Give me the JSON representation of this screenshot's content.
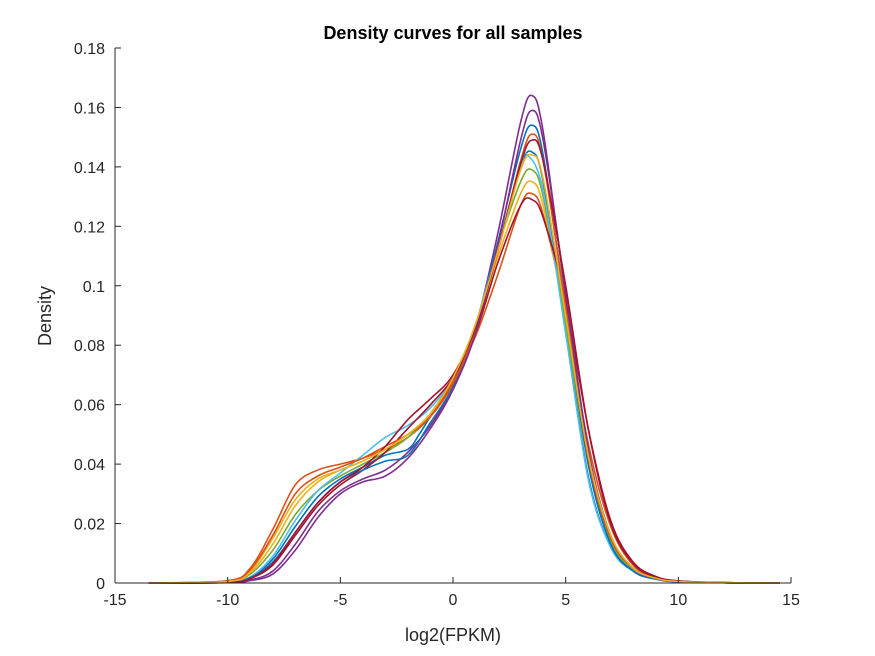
{
  "chart_data": {
    "type": "line",
    "title": "Density curves for all samples",
    "xlabel": "log2(FPKM)",
    "ylabel": "Density",
    "xlim": [
      -15,
      15
    ],
    "ylim": [
      0,
      0.18
    ],
    "xticks": [
      "-15",
      "-10",
      "-5",
      "0",
      "5",
      "10",
      "15"
    ],
    "yticks": [
      "0",
      "0.02",
      "0.04",
      "0.06",
      "0.08",
      "0.1",
      "0.12",
      "0.14",
      "0.16",
      "0.18"
    ],
    "grid": false,
    "legend": "none",
    "series": [
      {
        "color": "#0072BD",
        "values": [
          [
            -13.5,
            0
          ],
          [
            -10,
            0.0003
          ],
          [
            -9,
            0.002
          ],
          [
            -8,
            0.008
          ],
          [
            -7,
            0.019
          ],
          [
            -6,
            0.029
          ],
          [
            -5,
            0.035
          ],
          [
            -4,
            0.039
          ],
          [
            -3,
            0.043
          ],
          [
            -2,
            0.045
          ],
          [
            -1.5,
            0.05
          ],
          [
            -1,
            0.056
          ],
          [
            0,
            0.067
          ],
          [
            1,
            0.085
          ],
          [
            2,
            0.112
          ],
          [
            3,
            0.14
          ],
          [
            3.5,
            0.145
          ],
          [
            4,
            0.135
          ],
          [
            5,
            0.085
          ],
          [
            6,
            0.036
          ],
          [
            7,
            0.012
          ],
          [
            8,
            0.004
          ],
          [
            9,
            0.0015
          ],
          [
            10,
            0.0005
          ],
          [
            12,
            0.0001
          ],
          [
            14.5,
            0
          ]
        ]
      },
      {
        "color": "#D95319",
        "values": [
          [
            -13.5,
            0
          ],
          [
            -10,
            0.0008
          ],
          [
            -9,
            0.005
          ],
          [
            -8,
            0.018
          ],
          [
            -7,
            0.033
          ],
          [
            -6,
            0.038
          ],
          [
            -5,
            0.04
          ],
          [
            -4,
            0.042
          ],
          [
            -3,
            0.045
          ],
          [
            -2,
            0.049
          ],
          [
            -1,
            0.056
          ],
          [
            0,
            0.068
          ],
          [
            1,
            0.083
          ],
          [
            2,
            0.104
          ],
          [
            3,
            0.127
          ],
          [
            3.5,
            0.131
          ],
          [
            4,
            0.124
          ],
          [
            5,
            0.09
          ],
          [
            6,
            0.047
          ],
          [
            7,
            0.019
          ],
          [
            8,
            0.006
          ],
          [
            9,
            0.002
          ],
          [
            10,
            0.0007
          ],
          [
            12,
            0.0001
          ],
          [
            14.5,
            0
          ]
        ]
      },
      {
        "color": "#EDB120",
        "values": [
          [
            -13.5,
            0
          ],
          [
            -10,
            0.0006
          ],
          [
            -9,
            0.004
          ],
          [
            -8,
            0.015
          ],
          [
            -7,
            0.028
          ],
          [
            -6,
            0.035
          ],
          [
            -5,
            0.038
          ],
          [
            -4,
            0.041
          ],
          [
            -3,
            0.045
          ],
          [
            -2,
            0.05
          ],
          [
            -1,
            0.057
          ],
          [
            0,
            0.069
          ],
          [
            1,
            0.086
          ],
          [
            2,
            0.11
          ],
          [
            3,
            0.131
          ],
          [
            3.5,
            0.135
          ],
          [
            4,
            0.127
          ],
          [
            5,
            0.088
          ],
          [
            6,
            0.043
          ],
          [
            7,
            0.016
          ],
          [
            8,
            0.005
          ],
          [
            9,
            0.0017
          ],
          [
            10,
            0.0006
          ],
          [
            12,
            0.0001
          ],
          [
            14.5,
            0
          ]
        ]
      },
      {
        "color": "#7E2F8E",
        "values": [
          [
            -13.5,
            0
          ],
          [
            -10,
            0.0001
          ],
          [
            -9,
            0.001
          ],
          [
            -8,
            0.004
          ],
          [
            -7,
            0.013
          ],
          [
            -6,
            0.024
          ],
          [
            -5,
            0.031
          ],
          [
            -4,
            0.035
          ],
          [
            -3,
            0.038
          ],
          [
            -2,
            0.044
          ],
          [
            -1,
            0.053
          ],
          [
            0,
            0.066
          ],
          [
            1,
            0.086
          ],
          [
            2,
            0.118
          ],
          [
            3,
            0.155
          ],
          [
            3.5,
            0.164
          ],
          [
            4,
            0.152
          ],
          [
            5,
            0.096
          ],
          [
            6,
            0.042
          ],
          [
            7,
            0.014
          ],
          [
            8,
            0.004
          ],
          [
            9,
            0.0013
          ],
          [
            10,
            0.0004
          ],
          [
            12,
            0.0001
          ],
          [
            14.5,
            0
          ]
        ]
      },
      {
        "color": "#77AC30",
        "values": [
          [
            -13.5,
            0
          ],
          [
            -10,
            0.0004
          ],
          [
            -9,
            0.003
          ],
          [
            -8,
            0.011
          ],
          [
            -7,
            0.023
          ],
          [
            -6,
            0.031
          ],
          [
            -5,
            0.036
          ],
          [
            -4,
            0.04
          ],
          [
            -3,
            0.044
          ],
          [
            -2,
            0.049
          ],
          [
            -1,
            0.057
          ],
          [
            0,
            0.069
          ],
          [
            1,
            0.087
          ],
          [
            2,
            0.113
          ],
          [
            3,
            0.135
          ],
          [
            3.5,
            0.139
          ],
          [
            4,
            0.13
          ],
          [
            5,
            0.087
          ],
          [
            6,
            0.04
          ],
          [
            7,
            0.014
          ],
          [
            8,
            0.0045
          ],
          [
            9,
            0.0015
          ],
          [
            10,
            0.0005
          ],
          [
            12,
            0.0001
          ],
          [
            14.5,
            0
          ]
        ]
      },
      {
        "color": "#4DBEEE",
        "values": [
          [
            -13.5,
            0
          ],
          [
            -10,
            0.0003
          ],
          [
            -9,
            0.002
          ],
          [
            -8,
            0.009
          ],
          [
            -7,
            0.021
          ],
          [
            -6,
            0.031
          ],
          [
            -5,
            0.037
          ],
          [
            -4,
            0.043
          ],
          [
            -3,
            0.049
          ],
          [
            -2,
            0.053
          ],
          [
            -1,
            0.059
          ],
          [
            0,
            0.069
          ],
          [
            1,
            0.087
          ],
          [
            2,
            0.114
          ],
          [
            3,
            0.14
          ],
          [
            3.3,
            0.144
          ],
          [
            4,
            0.132
          ],
          [
            5,
            0.084
          ],
          [
            6,
            0.035
          ],
          [
            7,
            0.012
          ],
          [
            8,
            0.004
          ],
          [
            9,
            0.0013
          ],
          [
            10,
            0.0004
          ],
          [
            12,
            0.0001
          ],
          [
            14.5,
            0
          ]
        ]
      },
      {
        "color": "#A2142F",
        "values": [
          [
            -13.5,
            0
          ],
          [
            -10,
            0.0002
          ],
          [
            -9,
            0.0015
          ],
          [
            -8,
            0.006
          ],
          [
            -7,
            0.016
          ],
          [
            -6,
            0.026
          ],
          [
            -5,
            0.033
          ],
          [
            -4,
            0.038
          ],
          [
            -3,
            0.044
          ],
          [
            -2,
            0.052
          ],
          [
            -1,
            0.06
          ],
          [
            0,
            0.069
          ],
          [
            1,
            0.084
          ],
          [
            2,
            0.108
          ],
          [
            3,
            0.127
          ],
          [
            3.5,
            0.129
          ],
          [
            4,
            0.123
          ],
          [
            5,
            0.095
          ],
          [
            6,
            0.052
          ],
          [
            7,
            0.021
          ],
          [
            8,
            0.007
          ],
          [
            9,
            0.0022
          ],
          [
            10,
            0.0007
          ],
          [
            12,
            0.0001
          ],
          [
            14.5,
            0
          ]
        ]
      },
      {
        "color": "#0072BD",
        "values": [
          [
            -13.5,
            0
          ],
          [
            -10,
            0.0002
          ],
          [
            -9,
            0.0018
          ],
          [
            -8,
            0.007
          ],
          [
            -7,
            0.017
          ],
          [
            -6,
            0.027
          ],
          [
            -5,
            0.034
          ],
          [
            -4,
            0.038
          ],
          [
            -3,
            0.041
          ],
          [
            -2,
            0.043
          ],
          [
            -1,
            0.054
          ],
          [
            0,
            0.066
          ],
          [
            1,
            0.085
          ],
          [
            2,
            0.115
          ],
          [
            3,
            0.146
          ],
          [
            3.5,
            0.154
          ],
          [
            4,
            0.144
          ],
          [
            5,
            0.092
          ],
          [
            6,
            0.04
          ],
          [
            7,
            0.013
          ],
          [
            8,
            0.004
          ],
          [
            9,
            0.0013
          ],
          [
            10,
            0.0004
          ],
          [
            12,
            0.0001
          ],
          [
            14.5,
            0
          ]
        ]
      },
      {
        "color": "#D95319",
        "values": [
          [
            -13.5,
            0
          ],
          [
            -10,
            0.0007
          ],
          [
            -9,
            0.0045
          ],
          [
            -8,
            0.016
          ],
          [
            -7,
            0.03
          ],
          [
            -6,
            0.036
          ],
          [
            -5,
            0.039
          ],
          [
            -4,
            0.042
          ],
          [
            -3,
            0.046
          ],
          [
            -2,
            0.05
          ],
          [
            -1,
            0.056
          ],
          [
            0,
            0.067
          ],
          [
            1,
            0.085
          ],
          [
            2,
            0.112
          ],
          [
            3,
            0.142
          ],
          [
            3.5,
            0.151
          ],
          [
            4,
            0.142
          ],
          [
            5,
            0.093
          ],
          [
            6,
            0.042
          ],
          [
            7,
            0.015
          ],
          [
            8,
            0.005
          ],
          [
            9,
            0.0016
          ],
          [
            10,
            0.0005
          ],
          [
            12,
            0.0001
          ],
          [
            14.5,
            0
          ]
        ]
      },
      {
        "color": "#7E2F8E",
        "values": [
          [
            -13.5,
            0
          ],
          [
            -10,
            0.0001
          ],
          [
            -9,
            0.0008
          ],
          [
            -8,
            0.003
          ],
          [
            -7,
            0.011
          ],
          [
            -6,
            0.022
          ],
          [
            -5,
            0.03
          ],
          [
            -4,
            0.034
          ],
          [
            -3,
            0.036
          ],
          [
            -2,
            0.042
          ],
          [
            -1,
            0.052
          ],
          [
            0,
            0.065
          ],
          [
            1,
            0.084
          ],
          [
            2,
            0.114
          ],
          [
            3,
            0.149
          ],
          [
            3.5,
            0.159
          ],
          [
            4,
            0.149
          ],
          [
            5,
            0.098
          ],
          [
            6,
            0.045
          ],
          [
            7,
            0.016
          ],
          [
            8,
            0.005
          ],
          [
            9,
            0.0015
          ],
          [
            10,
            0.0005
          ],
          [
            12,
            0.0001
          ],
          [
            14.5,
            0
          ]
        ]
      },
      {
        "color": "#A2142F",
        "values": [
          [
            -13.5,
            0
          ],
          [
            -10,
            0.0002
          ],
          [
            -9,
            0.0015
          ],
          [
            -8,
            0.0065
          ],
          [
            -7,
            0.017
          ],
          [
            -6,
            0.027
          ],
          [
            -5,
            0.034
          ],
          [
            -4,
            0.039
          ],
          [
            -3,
            0.046
          ],
          [
            -2,
            0.055
          ],
          [
            -1,
            0.062
          ],
          [
            0,
            0.07
          ],
          [
            1,
            0.086
          ],
          [
            2,
            0.112
          ],
          [
            3,
            0.141
          ],
          [
            3.5,
            0.149
          ],
          [
            4,
            0.142
          ],
          [
            5,
            0.1
          ],
          [
            6,
            0.052
          ],
          [
            7,
            0.02
          ],
          [
            8,
            0.0065
          ],
          [
            9,
            0.002
          ],
          [
            10,
            0.0006
          ],
          [
            12,
            0.0001
          ],
          [
            14.5,
            0
          ]
        ]
      },
      {
        "color": "#EDB120",
        "values": [
          [
            -13.5,
            0
          ],
          [
            -10,
            0.0005
          ],
          [
            -9,
            0.0035
          ],
          [
            -8,
            0.013
          ],
          [
            -7,
            0.026
          ],
          [
            -6,
            0.034
          ],
          [
            -5,
            0.038
          ],
          [
            -4,
            0.041
          ],
          [
            -3,
            0.045
          ],
          [
            -2,
            0.05
          ],
          [
            -1,
            0.057
          ],
          [
            0,
            0.069
          ],
          [
            1,
            0.087
          ],
          [
            2,
            0.112
          ],
          [
            3,
            0.139
          ],
          [
            3.5,
            0.144
          ],
          [
            4,
            0.136
          ],
          [
            5,
            0.09
          ],
          [
            6,
            0.043
          ],
          [
            7,
            0.016
          ],
          [
            8,
            0.005
          ],
          [
            9,
            0.0016
          ],
          [
            10,
            0.0005
          ],
          [
            12,
            0.0001
          ],
          [
            14.5,
            0
          ]
        ]
      }
    ]
  }
}
